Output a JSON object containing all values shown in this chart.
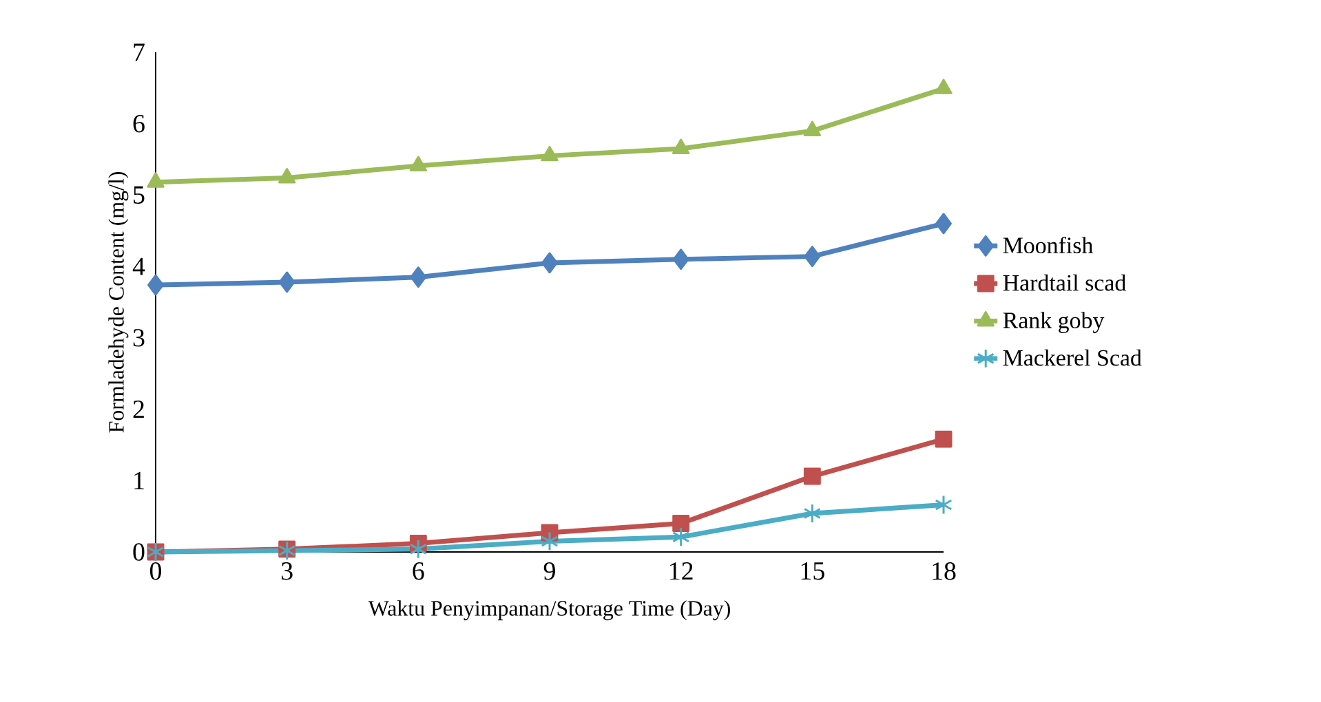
{
  "chart_data": {
    "type": "line",
    "xlabel": "Waktu Penyimpanan/Storage Time (Day)",
    "ylabel": "Formladehyde Content (mg/l)",
    "x": [
      0,
      3,
      6,
      9,
      12,
      15,
      18
    ],
    "xlim": [
      0,
      18
    ],
    "xticks": [
      0,
      3,
      6,
      9,
      12,
      15,
      18
    ],
    "ylim": [
      0,
      7
    ],
    "yticks": [
      0,
      1,
      2,
      3,
      4,
      5,
      6,
      7
    ],
    "grid": false,
    "legend": "right",
    "line_style": "solid",
    "series": [
      {
        "name": "Moonfish",
        "color": "#4f81bd",
        "marker": "diamond",
        "values": [
          3.74,
          3.78,
          3.85,
          4.05,
          4.1,
          4.14,
          4.6
        ]
      },
      {
        "name": "Hardtail scad",
        "color": "#c0504d",
        "marker": "square",
        "values": [
          0,
          0.04,
          0.12,
          0.27,
          0.4,
          1.06,
          1.58
        ]
      },
      {
        "name": "Rank goby",
        "color": "#9bbb59",
        "marker": "triangle",
        "values": [
          5.18,
          5.24,
          5.41,
          5.55,
          5.65,
          5.9,
          6.49
        ]
      },
      {
        "name": "Mackerel Scad",
        "color": "#4bacc6",
        "marker": "cross",
        "values": [
          0,
          0.02,
          0.04,
          0.15,
          0.21,
          0.54,
          0.66
        ]
      }
    ]
  }
}
